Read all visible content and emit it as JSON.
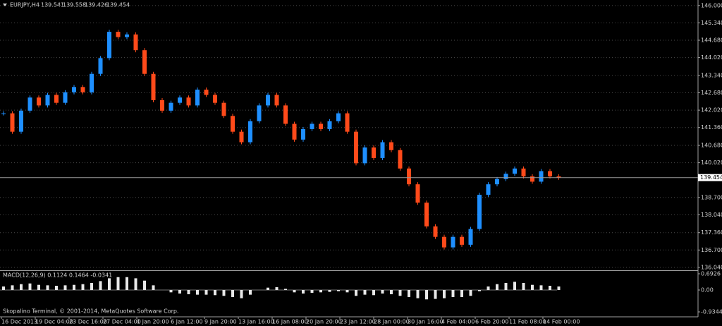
{
  "chart_data": [
    {
      "type": "candlestick",
      "title": "EURJPY,H4",
      "ohlc": [
        139.541,
        139.558,
        139.426,
        139.454
      ],
      "x_axis_labels": [
        "16 Dec 2013",
        "19 Dec 04:00",
        "23 Dec 16:00",
        "27 Dec 04:00",
        "1 Jan 20:00",
        "6 Jan 12:00",
        "9 Jan 20:00",
        "13 Jan 16:00",
        "16 Jan 08:00",
        "20 Jan 20:00",
        "23 Jan 12:00",
        "28 Jan 00:00",
        "30 Jan 16:00",
        "4 Feb 04:00",
        "6 Feb 20:00",
        "11 Feb 08:00",
        "14 Feb 00:00"
      ],
      "values": [
        141.9,
        141.2,
        142.0,
        142.5,
        142.2,
        142.6,
        142.3,
        142.7,
        142.9,
        142.7,
        143.4,
        144.0,
        145.0,
        144.8,
        144.9,
        144.3,
        143.4,
        142.4,
        142.0,
        142.3,
        142.5,
        142.2,
        142.8,
        142.6,
        142.3,
        141.8,
        141.2,
        140.8,
        141.6,
        142.2,
        142.6,
        142.2,
        141.5,
        140.9,
        141.3,
        141.5,
        141.3,
        141.6,
        141.9,
        141.2,
        140.0,
        140.6,
        140.2,
        140.8,
        140.5,
        139.8,
        139.2,
        138.5,
        137.6,
        137.2,
        136.8,
        137.2,
        136.9,
        137.5,
        138.8,
        139.2,
        139.4,
        139.6,
        139.8,
        139.5,
        139.3,
        139.7,
        139.5,
        139.454
      ],
      "up_color": "#1e8fff",
      "down_color": "#ff4a1a",
      "ylim": [
        135.93,
        146.21
      ],
      "yticks": [
        {
          "value": 146,
          "label": "146.000"
        },
        {
          "value": 145.34,
          "label": "145.340"
        },
        {
          "value": 144.68,
          "label": "144.680"
        },
        {
          "value": 144.02,
          "label": "144.020"
        },
        {
          "value": 143.34,
          "label": "143.340"
        },
        {
          "value": 142.68,
          "label": "142.680"
        },
        {
          "value": 142.02,
          "label": "142.020"
        },
        {
          "value": 141.36,
          "label": "141.360"
        },
        {
          "value": 140.68,
          "label": "140.680"
        },
        {
          "value": 140.02,
          "label": "140.020"
        },
        {
          "value": 138.7,
          "label": "138.700"
        },
        {
          "value": 138.04,
          "label": "138.040"
        },
        {
          "value": 137.36,
          "label": "137.360"
        },
        {
          "value": 136.7,
          "label": "136.700"
        },
        {
          "value": 136.04,
          "label": "136.040"
        }
      ],
      "last_price": 139.454,
      "grid": true
    },
    {
      "type": "bar",
      "title": "MACD(12,26,9) 0.1124 0.1464 -0.0341",
      "values": [
        0.15,
        0.2,
        0.25,
        0.28,
        0.22,
        0.2,
        0.18,
        0.2,
        0.22,
        0.25,
        0.3,
        0.38,
        0.5,
        0.55,
        0.55,
        0.5,
        0.4,
        0.2,
        0.0,
        -0.1,
        -0.15,
        -0.18,
        -0.2,
        -0.2,
        -0.22,
        -0.25,
        -0.3,
        -0.35,
        -0.2,
        0.0,
        0.1,
        0.12,
        0.05,
        -0.1,
        -0.15,
        -0.12,
        -0.1,
        -0.08,
        -0.05,
        -0.1,
        -0.25,
        -0.2,
        -0.22,
        -0.15,
        -0.18,
        -0.25,
        -0.3,
        -0.35,
        -0.4,
        -0.38,
        -0.35,
        -0.3,
        -0.3,
        -0.25,
        -0.05,
        0.15,
        0.25,
        0.3,
        0.35,
        0.3,
        0.22,
        0.2,
        0.18,
        0.15
      ],
      "color": "#e8e8e8",
      "ylim": [
        -1.115,
        0.813
      ],
      "yticks": [
        0.6926,
        {
          "value": 0,
          "label": "0.00"
        },
        -0.9344
      ],
      "annotation": "Skopalino Terminal, © 2001-2014, MetaQuotes Software Corp."
    }
  ]
}
